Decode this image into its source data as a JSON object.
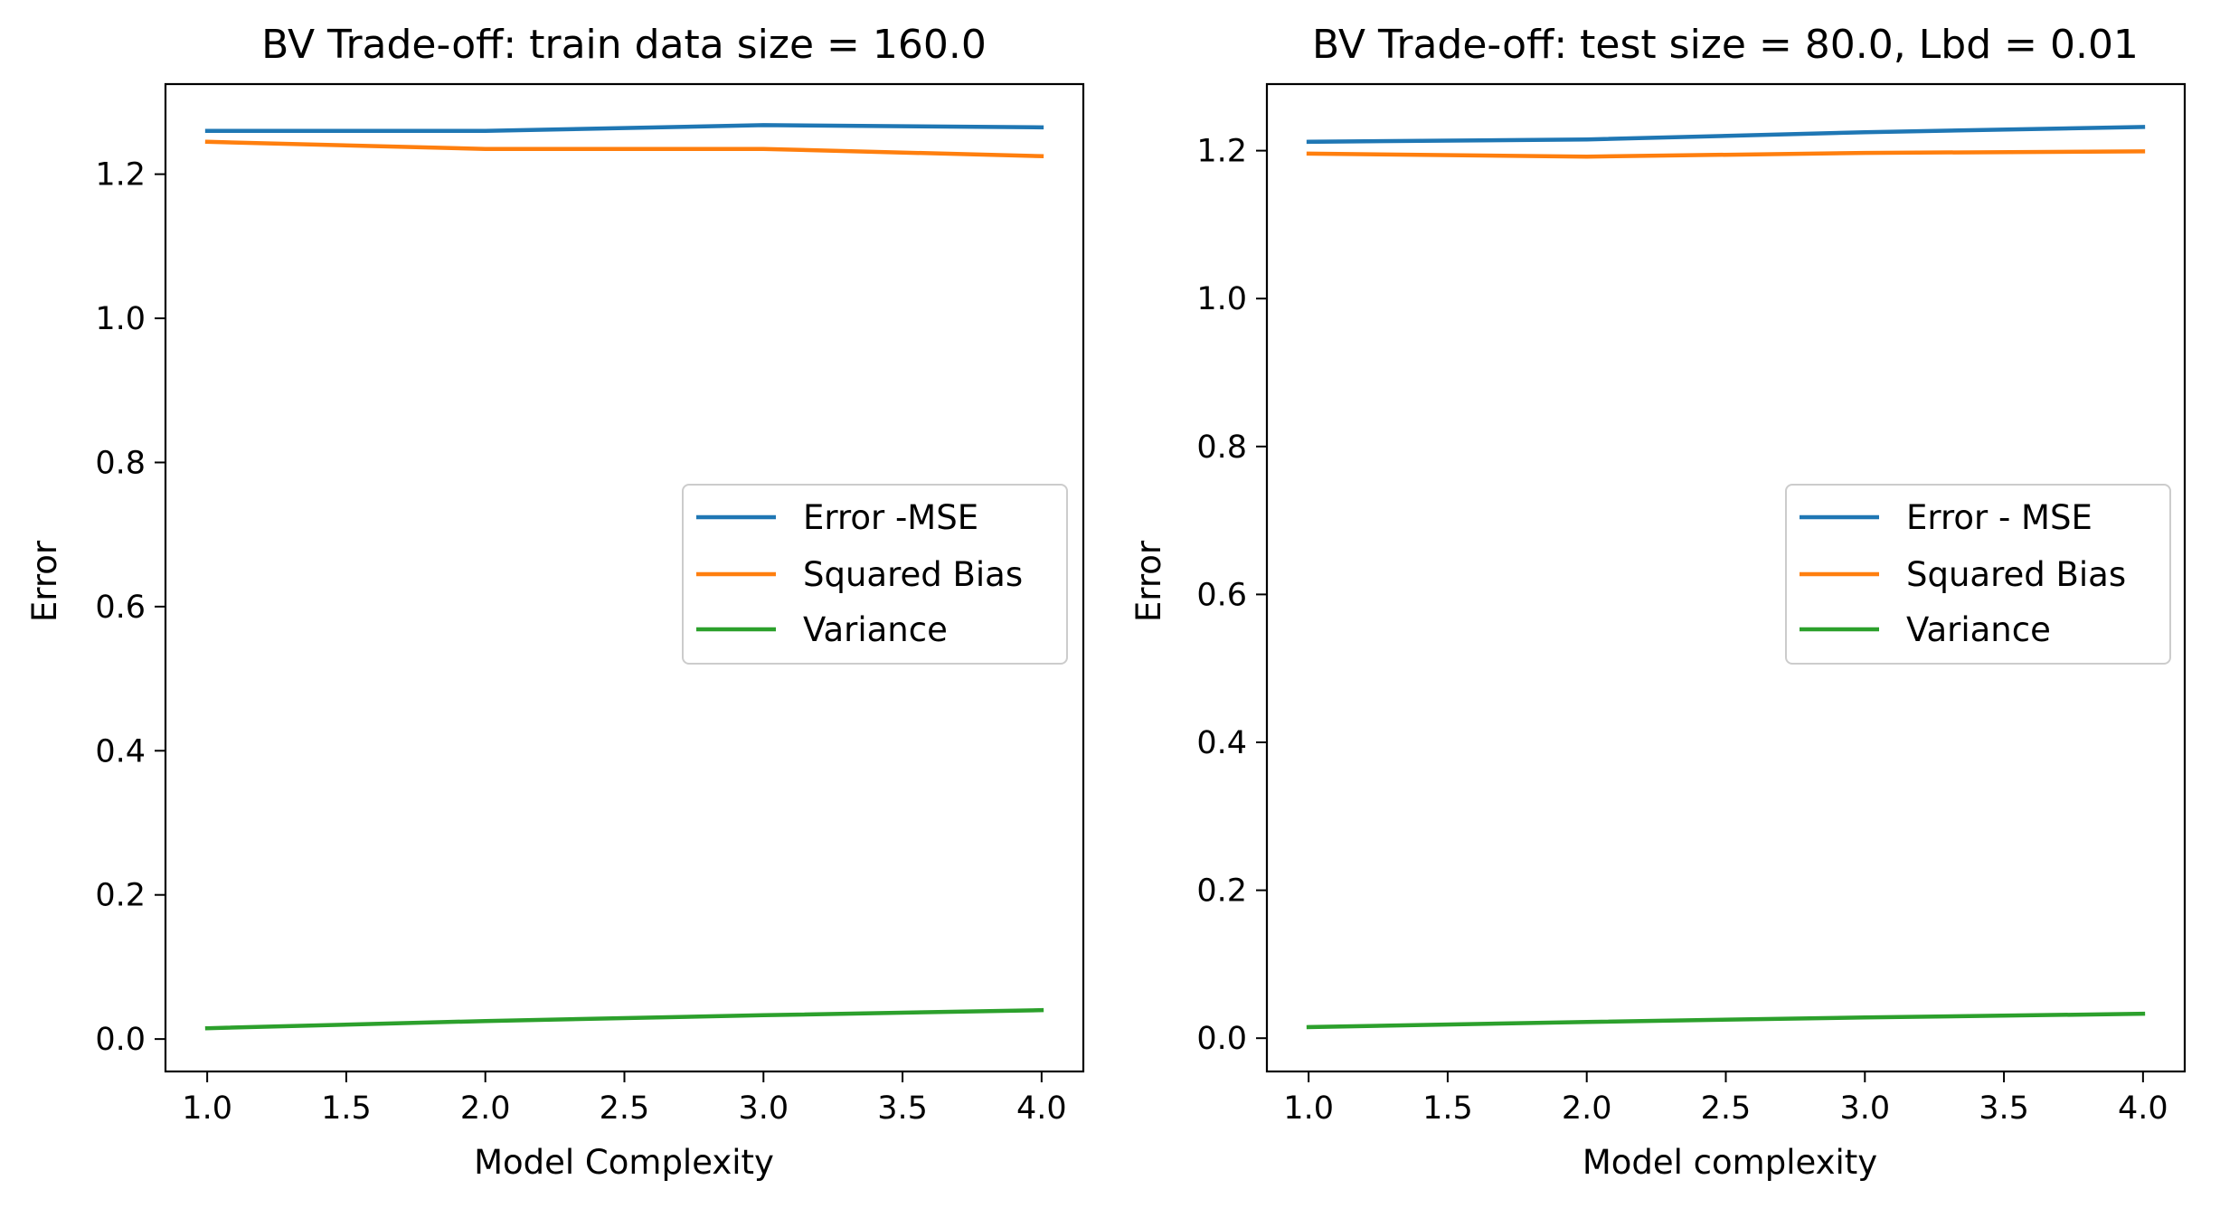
{
  "chart_data": [
    {
      "type": "line",
      "title": "BV Trade-off: train data size = 160.0",
      "xlabel": "Model Complexity",
      "ylabel": "Error",
      "x": [
        1.0,
        2.0,
        3.0,
        4.0
      ],
      "xlim": [
        0.85,
        4.15
      ],
      "ylim": [
        -0.045,
        1.325
      ],
      "xticks": [
        1.0,
        1.5,
        2.0,
        2.5,
        3.0,
        3.5,
        4.0
      ],
      "xtick_labels": [
        "1.0",
        "1.5",
        "2.0",
        "2.5",
        "3.0",
        "3.5",
        "4.0"
      ],
      "yticks": [
        0.0,
        0.2,
        0.4,
        0.6,
        0.8,
        1.0,
        1.2
      ],
      "ytick_labels": [
        "0.0",
        "0.2",
        "0.4",
        "0.6",
        "0.8",
        "1.0",
        "1.2"
      ],
      "legend_position": "center-right",
      "grid": false,
      "series": [
        {
          "name": "Error -MSE",
          "color": "#1f77b4",
          "values": [
            1.26,
            1.26,
            1.268,
            1.265
          ]
        },
        {
          "name": "Squared Bias",
          "color": "#ff7f0e",
          "values": [
            1.245,
            1.235,
            1.235,
            1.225
          ]
        },
        {
          "name": "Variance",
          "color": "#2ca02c",
          "values": [
            0.015,
            0.025,
            0.033,
            0.04
          ]
        }
      ]
    },
    {
      "type": "line",
      "title": "BV Trade-off: test size = 80.0, Lbd = 0.01",
      "xlabel": "Model complexity",
      "ylabel": "Error",
      "x": [
        1.0,
        2.0,
        3.0,
        4.0
      ],
      "xlim": [
        0.85,
        4.15
      ],
      "ylim": [
        -0.045,
        1.29
      ],
      "xticks": [
        1.0,
        1.5,
        2.0,
        2.5,
        3.0,
        3.5,
        4.0
      ],
      "xtick_labels": [
        "1.0",
        "1.5",
        "2.0",
        "2.5",
        "3.0",
        "3.5",
        "4.0"
      ],
      "yticks": [
        0.0,
        0.2,
        0.4,
        0.6,
        0.8,
        1.0,
        1.2
      ],
      "ytick_labels": [
        "0.0",
        "0.2",
        "0.4",
        "0.6",
        "0.8",
        "1.0",
        "1.2"
      ],
      "legend_position": "center-right",
      "grid": false,
      "series": [
        {
          "name": "Error - MSE",
          "color": "#1f77b4",
          "values": [
            1.212,
            1.215,
            1.225,
            1.232
          ]
        },
        {
          "name": "Squared Bias",
          "color": "#ff7f0e",
          "values": [
            1.196,
            1.192,
            1.197,
            1.199
          ]
        },
        {
          "name": "Variance",
          "color": "#2ca02c",
          "values": [
            0.015,
            0.022,
            0.028,
            0.033
          ]
        }
      ]
    }
  ]
}
